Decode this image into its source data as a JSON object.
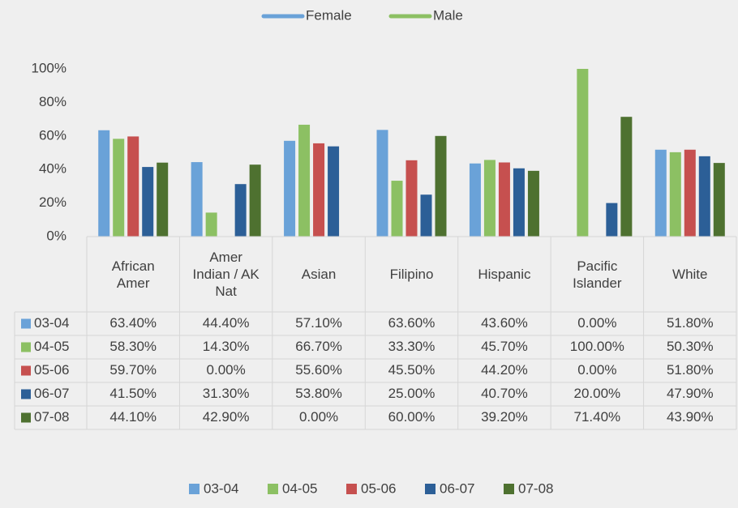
{
  "chart_data": {
    "type": "bar",
    "legend_top": [
      {
        "name": "Female",
        "color": "#6aa2d8"
      },
      {
        "name": "Male",
        "color": "#8cc063"
      }
    ],
    "categories": [
      "African Amer",
      "Amer Indian / AK Nat",
      "Asian",
      "Filipino",
      "Hispanic",
      "Pacific Islander",
      "White"
    ],
    "series": [
      {
        "name": "03-04",
        "color": "#6aa2d8",
        "values": [
          63.4,
          44.4,
          57.1,
          63.6,
          43.6,
          0,
          51.8
        ],
        "value_labels": [
          "63.40%",
          "44.40%",
          "57.10%",
          "63.60%",
          "43.60%",
          "0.00%",
          "51.80%"
        ]
      },
      {
        "name": "04-05",
        "color": "#8cc063",
        "values": [
          58.3,
          14.3,
          66.7,
          33.3,
          45.7,
          100,
          50.3
        ],
        "value_labels": [
          "58.30%",
          "14.30%",
          "66.70%",
          "33.30%",
          "45.70%",
          "100.00%",
          "50.30%"
        ]
      },
      {
        "name": "05-06",
        "color": "#c6504f",
        "values": [
          59.7,
          0,
          55.6,
          45.5,
          44.2,
          0,
          51.8
        ],
        "value_labels": [
          "59.70%",
          "0.00%",
          "55.60%",
          "45.50%",
          "44.20%",
          "0.00%",
          "51.80%"
        ]
      },
      {
        "name": "06-07",
        "color": "#2c5f97",
        "values": [
          41.5,
          31.3,
          53.8,
          25,
          40.7,
          20,
          47.9
        ],
        "value_labels": [
          "41.50%",
          "31.30%",
          "53.80%",
          "25.00%",
          "40.70%",
          "20.00%",
          "47.90%"
        ]
      },
      {
        "name": "07-08",
        "color": "#4e7130",
        "values": [
          44.1,
          42.9,
          0,
          60,
          39.2,
          71.4,
          43.9
        ],
        "value_labels": [
          "44.10%",
          "42.90%",
          "0.00%",
          "60.00%",
          "39.20%",
          "71.40%",
          "43.90%"
        ]
      }
    ],
    "ylim": [
      0,
      100
    ],
    "yticks": [
      {
        "value": 0,
        "label": "0%"
      },
      {
        "value": 20,
        "label": "20%"
      },
      {
        "value": 40,
        "label": "40%"
      },
      {
        "value": 60,
        "label": "60%"
      },
      {
        "value": 80,
        "label": "80%"
      },
      {
        "value": 100,
        "label": "100%"
      }
    ],
    "grid": false
  }
}
